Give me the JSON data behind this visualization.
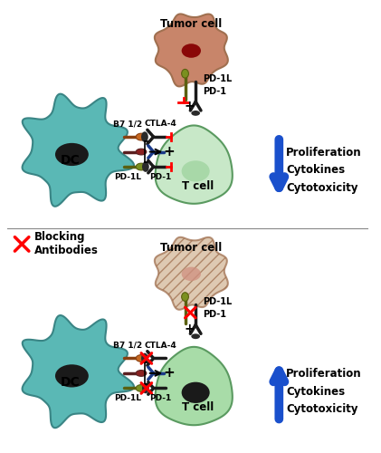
{
  "bg_color": "#ffffff",
  "dc_color": "#5ab8b5",
  "dc_edge": "#3a8585",
  "dc_nucleus": "#1a1a1a",
  "tcell_color_top": "#c8e8c8",
  "tcell_color_bot": "#a8dca8",
  "tcell_edge": "#5a9a60",
  "tumor_color_top": "#c8856a",
  "tumor_nucleus_top": "#8a0808",
  "tumor_color_bot": "#d4b898",
  "tumor_nucleus_bot": "#d09080",
  "b7_stem": "#8a4010",
  "b7_head": "#c86820",
  "ctla4_color": "#1a1a1a",
  "pd1l_stem": "#5a6010",
  "pd1l_head": "#7a9020",
  "pd1_color": "#1a1a1a",
  "mhc_stem": "#5a2020",
  "mhc_head": "#8a2020",
  "tcr_color": "#1a3a8a",
  "arrow_color": "#1a50cc",
  "red_color": "#cc0000",
  "text_color": "#1a1a1a",
  "panel1_labels": {
    "dc": "DC",
    "tcell": "T cell",
    "tumor": "Tumor cell",
    "b7": "B7 1/2",
    "ctla4": "CTLA-4",
    "pdl1_dc": "PD-1L",
    "pd1_dc": "PD-1",
    "pdl1_t": "PD-1L",
    "pd1_t": "PD-1",
    "prolif": "Proliferation",
    "cytok": "Cytokines",
    "cytotox": "Cytotoxicity"
  },
  "panel2_labels": {
    "dc": "DC",
    "tcell": "T cell",
    "tumor": "Tumor cell",
    "b7": "B7 1/2",
    "ctla4": "CTLA-4",
    "pdl1_dc": "PD-1L",
    "pd1_dc": "PD-1",
    "pdl1_t": "PD-1L",
    "pd1_t": "PD-1",
    "blocking": "Blocking\nAntibodies",
    "prolif": "Proliferation",
    "cytok": "Cytokines",
    "cytotox": "Cytotoxicity"
  }
}
